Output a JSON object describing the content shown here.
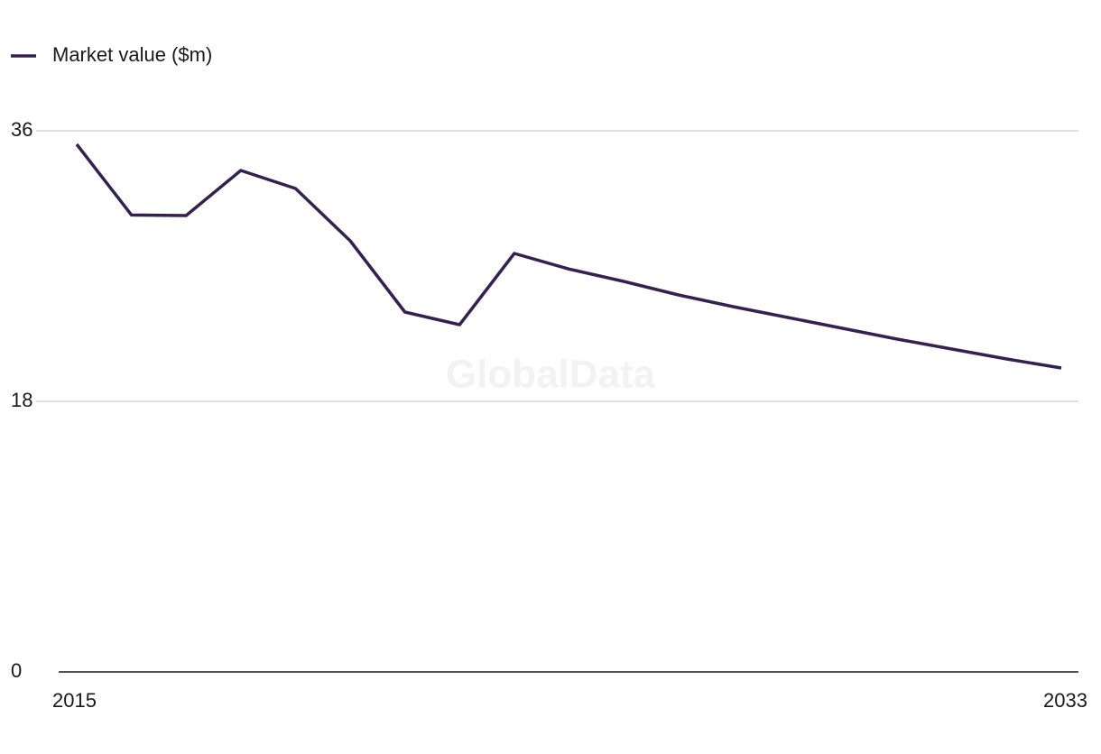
{
  "chart_data": {
    "type": "line",
    "watermark": "GlobalData",
    "x": [
      2015,
      2016,
      2017,
      2018,
      2019,
      2020,
      2021,
      2022,
      2023,
      2024,
      2025,
      2026,
      2027,
      2028,
      2029,
      2030,
      2031,
      2032,
      2033
    ],
    "series": [
      {
        "name": "Market value ($m)",
        "color": "#35214f",
        "values": [
          35.1,
          30.4,
          30.36,
          33.36,
          32.16,
          28.68,
          23.94,
          23.1,
          27.84,
          26.8,
          25.98,
          25.08,
          24.3,
          23.58,
          22.86,
          22.14,
          21.48,
          20.82,
          20.22
        ]
      }
    ],
    "xlim": [
      2015,
      2033
    ],
    "xticks": [
      2015,
      2033
    ],
    "ylim": [
      0,
      36
    ],
    "yticks": [
      0,
      18,
      36
    ],
    "grid": true,
    "legend": "top-left"
  }
}
